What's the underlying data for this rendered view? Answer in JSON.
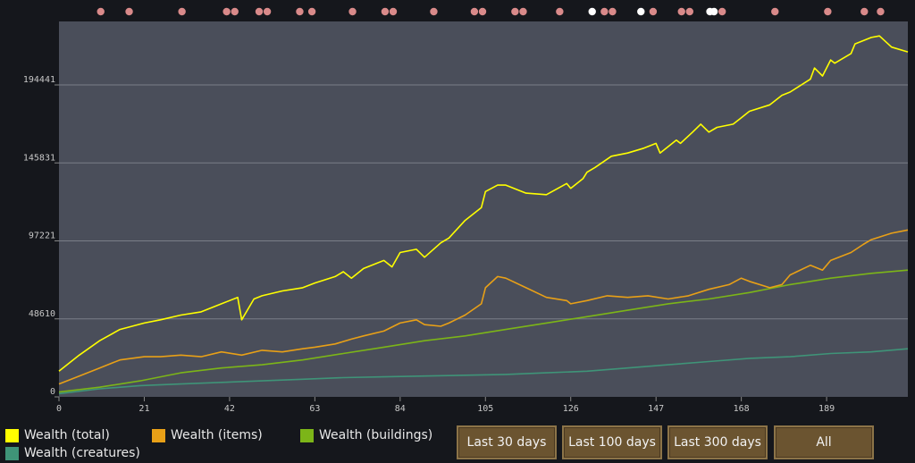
{
  "legend": [
    {
      "label": "Wealth (total)",
      "color": "#ffff00"
    },
    {
      "label": "Wealth (items)",
      "color": "#e8a017"
    },
    {
      "label": "Wealth (buildings)",
      "color": "#7cb518"
    },
    {
      "label": "Wealth (creatures)",
      "color": "#3f9478"
    }
  ],
  "buttons": {
    "last30": "Last 30 days",
    "last100": "Last 100 days",
    "last300": "Last 300 days",
    "all": "All"
  },
  "chart_data": {
    "type": "line",
    "xlim": [
      0,
      209
    ],
    "ylim": [
      0,
      234000
    ],
    "x_ticks": [
      0,
      21,
      42,
      63,
      84,
      105,
      126,
      147,
      168,
      189
    ],
    "x_tick_labels": [
      "0",
      "21",
      "42",
      "63",
      "84",
      "105",
      "126",
      "147",
      "168",
      "189"
    ],
    "y_ticks": [
      0,
      48610,
      97221,
      145831,
      194441
    ],
    "y_tick_labels": [
      "0",
      "48610",
      "97221",
      "145831",
      "194441"
    ],
    "grid": true,
    "legend_placement": "bottom-left",
    "series": [
      {
        "name": "Wealth (total)",
        "color": "#ffff00",
        "x": [
          0,
          5,
          10,
          15,
          21,
          25,
          30,
          35,
          40,
          44,
          45,
          48,
          50,
          55,
          60,
          63,
          68,
          70,
          72,
          75,
          80,
          82,
          84,
          88,
          90,
          94,
          96,
          100,
          104,
          105,
          108,
          110,
          115,
          120,
          125,
          126,
          129,
          130,
          132,
          136,
          140,
          144,
          147,
          148,
          150,
          152,
          153,
          156,
          158,
          160,
          162,
          166,
          168,
          170,
          175,
          178,
          180,
          185,
          186,
          188,
          190,
          191,
          195,
          196,
          200,
          202,
          205,
          209
        ],
        "y": [
          16000,
          26000,
          35000,
          42000,
          46000,
          48000,
          51000,
          53000,
          58000,
          62000,
          48000,
          61000,
          63000,
          66000,
          68000,
          71000,
          75000,
          78000,
          74000,
          80000,
          85000,
          81000,
          90000,
          92000,
          87000,
          96000,
          99000,
          110000,
          118000,
          128000,
          132000,
          132000,
          127000,
          126000,
          133000,
          130000,
          136000,
          140000,
          143000,
          150000,
          152000,
          155000,
          158000,
          152000,
          156000,
          160000,
          158000,
          165000,
          170000,
          165000,
          168000,
          170000,
          174000,
          178000,
          182000,
          188000,
          190000,
          198000,
          205000,
          200000,
          210000,
          208000,
          214000,
          220000,
          224000,
          225000,
          218000,
          215000
        ]
      },
      {
        "name": "Wealth (items)",
        "color": "#e8a017",
        "x": [
          0,
          5,
          10,
          15,
          21,
          25,
          30,
          35,
          40,
          45,
          50,
          55,
          60,
          63,
          68,
          72,
          75,
          80,
          84,
          88,
          90,
          94,
          96,
          100,
          104,
          105,
          108,
          110,
          115,
          120,
          125,
          126,
          130,
          135,
          140,
          145,
          150,
          155,
          160,
          165,
          168,
          170,
          175,
          178,
          180,
          185,
          188,
          190,
          195,
          198,
          200,
          205,
          209
        ],
        "y": [
          8000,
          13000,
          18000,
          23000,
          25000,
          25000,
          26000,
          25000,
          28000,
          26000,
          29000,
          28000,
          30000,
          31000,
          33000,
          36000,
          38000,
          41000,
          46000,
          48000,
          45000,
          44000,
          46000,
          51000,
          58000,
          68000,
          75000,
          74000,
          68000,
          62000,
          60000,
          58000,
          60000,
          63000,
          62000,
          63000,
          61000,
          63000,
          67000,
          70000,
          74000,
          72000,
          68000,
          70000,
          76000,
          82000,
          79000,
          85000,
          90000,
          95000,
          98000,
          102000,
          104000
        ]
      },
      {
        "name": "Wealth (buildings)",
        "color": "#7cb518",
        "x": [
          0,
          10,
          20,
          30,
          40,
          50,
          60,
          70,
          80,
          90,
          100,
          110,
          120,
          130,
          140,
          150,
          160,
          170,
          180,
          190,
          200,
          209
        ],
        "y": [
          3000,
          6000,
          10000,
          15000,
          18000,
          20000,
          23000,
          27000,
          31000,
          35000,
          38000,
          42000,
          46000,
          50000,
          54000,
          58000,
          61000,
          65000,
          70000,
          74000,
          77000,
          79000
        ]
      },
      {
        "name": "Wealth (creatures)",
        "color": "#3f9478",
        "x": [
          0,
          10,
          20,
          30,
          40,
          50,
          60,
          70,
          80,
          90,
          100,
          110,
          120,
          130,
          140,
          150,
          160,
          170,
          180,
          190,
          200,
          209
        ],
        "y": [
          2000,
          5000,
          7000,
          8000,
          9000,
          10000,
          11000,
          12000,
          12500,
          13000,
          13500,
          14000,
          15000,
          16000,
          18000,
          20000,
          22000,
          24000,
          25000,
          27000,
          28000,
          30000
        ]
      }
    ],
    "top_markers": {
      "x": [
        5,
        12,
        25,
        36,
        38,
        44,
        46,
        54,
        57,
        67,
        75,
        77,
        87,
        97,
        99,
        107,
        109,
        118,
        126,
        129,
        131,
        138,
        141,
        148,
        150,
        155,
        156,
        158,
        171,
        184,
        193,
        197,
        207
      ],
      "colors": [
        "#d98a8a",
        "#d98a8a",
        "#d98a8a",
        "#d98a8a",
        "#d98a8a",
        "#d98a8a",
        "#d98a8a",
        "#d98a8a",
        "#d98a8a",
        "#d98a8a",
        "#d98a8a",
        "#d98a8a",
        "#d98a8a",
        "#d98a8a",
        "#d98a8a",
        "#d98a8a",
        "#d98a8a",
        "#d98a8a",
        "#ffffff",
        "#d98a8a",
        "#d98a8a",
        "#ffffff",
        "#d98a8a",
        "#d98a8a",
        "#d98a8a",
        "#ffffff",
        "#ffffff",
        "#d98a8a",
        "#d98a8a",
        "#d98a8a",
        "#d98a8a",
        "#d98a8a",
        "#d98a8a"
      ]
    }
  }
}
